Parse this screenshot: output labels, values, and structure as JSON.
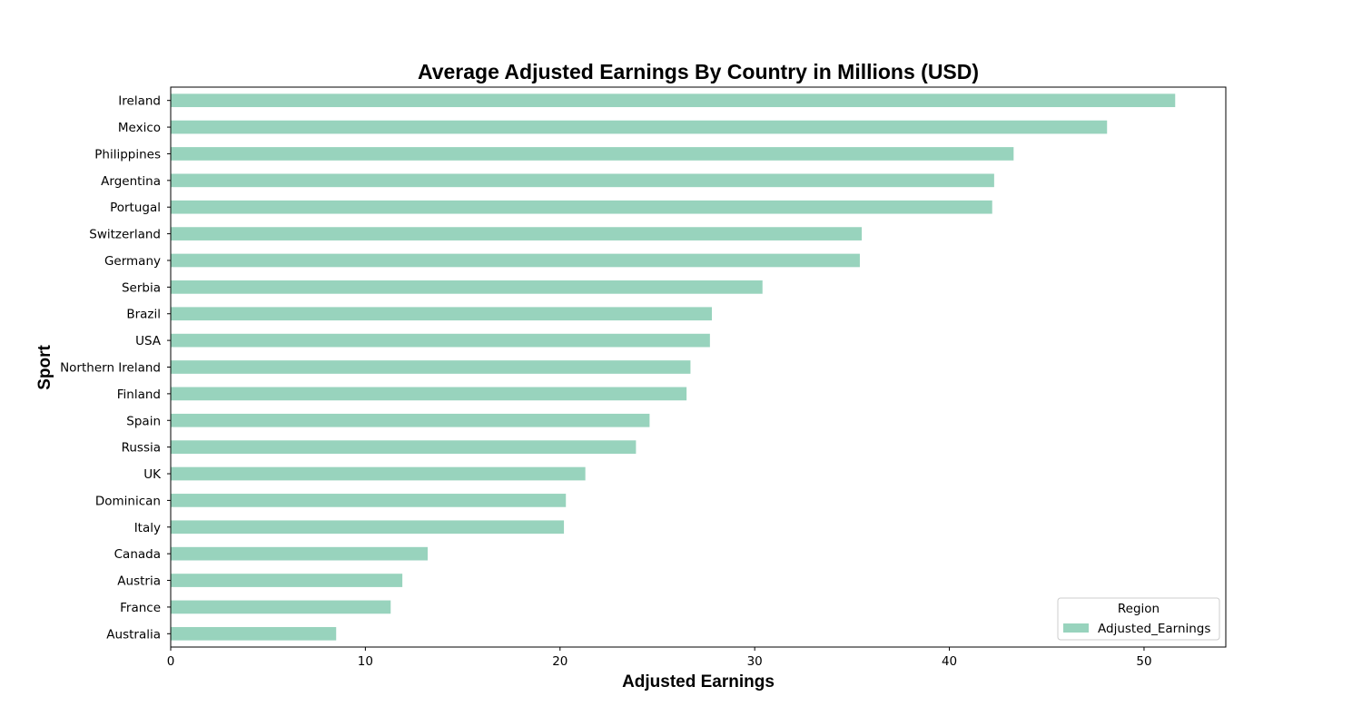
{
  "chart_data": {
    "type": "bar",
    "orientation": "horizontal",
    "title": "Average Adjusted Earnings By Country in Millions (USD)",
    "xlabel": "Adjusted Earnings",
    "ylabel": "Sport",
    "xlim": [
      0,
      54.2
    ],
    "xticks": [
      0,
      10,
      20,
      30,
      40,
      50
    ],
    "grid": false,
    "legend": {
      "title": "Region",
      "placement": "lower-right",
      "entries": [
        "Adjusted_Earnings"
      ]
    },
    "bar_color": "#98d3bd",
    "categories": [
      "Ireland",
      "Mexico",
      "Philippines",
      "Argentina",
      "Portugal",
      "Switzerland",
      "Germany",
      "Serbia",
      "Brazil",
      "USA",
      "Northern Ireland",
      "Finland",
      "Spain",
      "Russia",
      "UK",
      "Dominican",
      "Italy",
      "Canada",
      "Austria",
      "France",
      "Australia"
    ],
    "series": [
      {
        "name": "Adjusted_Earnings",
        "values": [
          51.6,
          48.1,
          43.3,
          42.3,
          42.2,
          35.5,
          35.4,
          30.4,
          27.8,
          27.7,
          26.7,
          26.5,
          24.6,
          23.9,
          21.3,
          20.3,
          20.2,
          13.2,
          11.9,
          11.3,
          8.5
        ]
      }
    ]
  }
}
